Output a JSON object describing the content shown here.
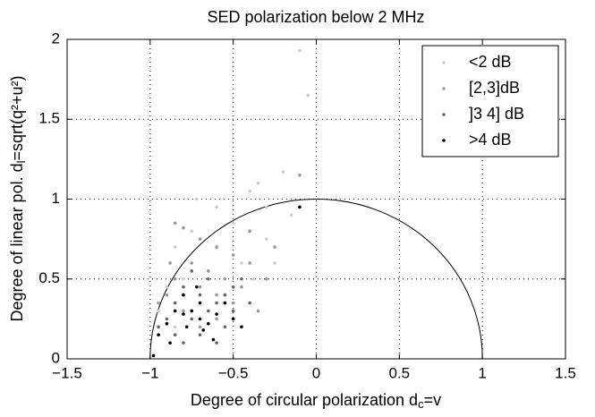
{
  "chart_data": {
    "type": "scatter",
    "title": "SED polarization below 2 MHz",
    "x_label": [
      "Degree of circular polarization d",
      "c",
      "=v"
    ],
    "y_label": [
      "Degree of linear pol. d",
      "l",
      "=sqrt(q²+u²)"
    ],
    "xlim": [
      -1.5,
      1.5
    ],
    "xticks": [
      {
        "value": -1.5,
        "label": "−1.5"
      },
      {
        "value": -1,
        "label": "−1"
      },
      {
        "value": -0.5,
        "label": "−0.5"
      },
      0,
      0.5,
      1,
      1.5
    ],
    "ylim": [
      0,
      2
    ],
    "yticks": [
      0,
      0.5,
      1,
      1.5,
      2
    ],
    "grid": true,
    "legend": "upper right",
    "series": [
      {
        "name": "<2 dB",
        "color": "#cccccc",
        "x": [
          -0.1,
          -0.05,
          -0.35,
          -0.4,
          -0.6,
          -0.75,
          -0.85,
          -0.5,
          -0.3,
          -0.45,
          -0.65,
          -0.8,
          -0.9,
          -0.55,
          -0.7,
          -0.95,
          -0.25,
          -0.15,
          -0.2,
          -0.6,
          -0.72,
          -0.38,
          -0.5,
          -0.85,
          -0.3
        ],
        "values": [
          1.93,
          1.65,
          1.1,
          1.05,
          0.95,
          0.8,
          0.7,
          0.85,
          0.75,
          0.6,
          0.55,
          0.5,
          0.45,
          0.4,
          0.35,
          0.3,
          0.6,
          0.9,
          1.17,
          0.7,
          1.0,
          0.5,
          0.3,
          0.2,
          0.95
        ]
      },
      {
        "name": "[2,3]dB",
        "color": "#999999",
        "x": [
          -0.85,
          -0.8,
          -0.7,
          -0.6,
          -0.5,
          -0.4,
          -0.3,
          -0.45,
          -0.55,
          -0.65,
          -0.75,
          -0.85,
          -0.9,
          -0.95,
          -0.6,
          -0.7,
          -0.8,
          -0.5,
          -0.35,
          -0.25,
          -0.1,
          -0.6,
          -0.7,
          -0.88,
          -0.4
        ],
        "values": [
          0.85,
          0.82,
          0.75,
          0.7,
          0.65,
          0.6,
          0.5,
          0.45,
          0.5,
          0.55,
          0.6,
          0.5,
          0.4,
          0.35,
          0.4,
          0.45,
          0.3,
          0.35,
          0.3,
          0.7,
          1.15,
          0.25,
          0.2,
          0.6,
          0.8
        ]
      },
      {
        "name": "]3 4] dB",
        "color": "#666666",
        "x": [
          -0.8,
          -0.7,
          -0.6,
          -0.5,
          -0.45,
          -0.55,
          -0.65,
          -0.75,
          -0.85,
          -0.9,
          -0.95,
          -0.7,
          -0.6,
          -0.8,
          -0.5,
          -0.65,
          -0.75,
          -0.4,
          -0.85,
          -0.55
        ],
        "values": [
          0.45,
          0.4,
          0.35,
          0.3,
          0.5,
          0.2,
          0.3,
          0.25,
          0.35,
          0.25,
          0.2,
          0.15,
          0.1,
          0.1,
          0.45,
          0.5,
          0.55,
          0.35,
          0.15,
          0.4
        ]
      },
      {
        "name": ">4 dB",
        "color": "#000000",
        "x": [
          -0.75,
          -0.7,
          -0.65,
          -0.8,
          -0.85,
          -0.9,
          -0.95,
          -0.6,
          -0.55,
          -0.72,
          -0.78,
          -0.68,
          -0.62,
          -0.88,
          -0.98,
          -0.5,
          -0.45,
          -0.1,
          -0.8,
          -0.7
        ],
        "values": [
          0.3,
          0.25,
          0.22,
          0.28,
          0.3,
          0.22,
          0.15,
          0.28,
          0.35,
          0.45,
          0.2,
          0.18,
          0.12,
          0.1,
          0.02,
          0.25,
          0.2,
          0.95,
          0.4,
          0.35
        ]
      }
    ]
  }
}
